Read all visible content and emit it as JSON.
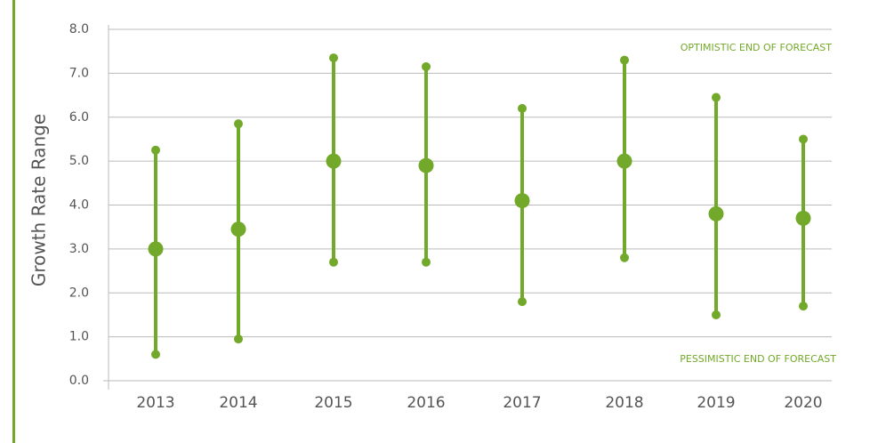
{
  "chart_data": {
    "type": "range",
    "y_label": "Growth Rate Range",
    "annotations": [
      "OPTIMISTIC END OF FORECAST",
      "PESSIMISTIC END OF FORECAST"
    ],
    "categories": [
      "2013",
      "2014",
      "2015",
      "2016",
      "2017",
      "2018",
      "2019",
      "2020"
    ],
    "values": [
      3.0,
      3.45,
      5.0,
      4.9,
      4.1,
      5.0,
      3.8,
      3.7
    ],
    "lows": [
      0.6,
      0.95,
      2.7,
      2.7,
      1.8,
      2.8,
      1.5,
      1.7
    ],
    "highs": [
      5.25,
      5.85,
      7.35,
      7.15,
      6.2,
      7.3,
      6.45,
      5.5
    ],
    "color": "#72a92a",
    "ylim": [
      0,
      8
    ],
    "yticks": [
      {
        "value": 0,
        "label": "0.0"
      },
      {
        "value": 1,
        "label": "1.0"
      },
      {
        "value": 2,
        "label": "2.0"
      },
      {
        "value": 3,
        "label": "3.0"
      },
      {
        "value": 4,
        "label": "4.0"
      },
      {
        "value": 5,
        "label": "5.0"
      },
      {
        "value": 6,
        "label": "6.0"
      },
      {
        "value": 7,
        "label": "7.0"
      },
      {
        "value": 8,
        "label": "8.0"
      }
    ],
    "grid": true
  }
}
